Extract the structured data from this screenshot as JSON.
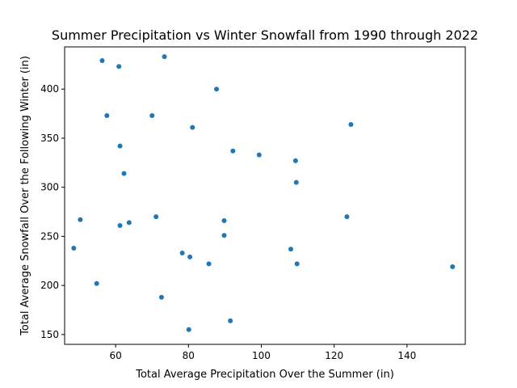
{
  "chart_data": {
    "type": "scatter",
    "title": "Summer Precipitation vs Winter Snowfall from 1990 through 2022",
    "xlabel": "Total Average Precipitation Over the Summer (in)",
    "ylabel": "Total Average Snowfall Over the Following Winter (in)",
    "xlim": [
      46,
      156
    ],
    "ylim": [
      140,
      443
    ],
    "xticks": [
      60,
      80,
      100,
      120,
      140
    ],
    "yticks": [
      150,
      200,
      250,
      300,
      350,
      400
    ],
    "grid": false,
    "point_color": "#1f77b4",
    "points": [
      {
        "x": 48.5,
        "y": 238
      },
      {
        "x": 50.3,
        "y": 267
      },
      {
        "x": 54.8,
        "y": 202
      },
      {
        "x": 56.3,
        "y": 429
      },
      {
        "x": 57.6,
        "y": 373
      },
      {
        "x": 60.9,
        "y": 423
      },
      {
        "x": 61.2,
        "y": 342
      },
      {
        "x": 61.2,
        "y": 261
      },
      {
        "x": 62.3,
        "y": 314
      },
      {
        "x": 63.7,
        "y": 264
      },
      {
        "x": 70.0,
        "y": 373
      },
      {
        "x": 71.1,
        "y": 270
      },
      {
        "x": 72.6,
        "y": 188
      },
      {
        "x": 73.4,
        "y": 433
      },
      {
        "x": 78.3,
        "y": 233
      },
      {
        "x": 80.1,
        "y": 155
      },
      {
        "x": 80.4,
        "y": 229
      },
      {
        "x": 81.1,
        "y": 361
      },
      {
        "x": 85.6,
        "y": 222
      },
      {
        "x": 87.7,
        "y": 400
      },
      {
        "x": 89.8,
        "y": 266
      },
      {
        "x": 89.8,
        "y": 251
      },
      {
        "x": 91.5,
        "y": 164
      },
      {
        "x": 92.2,
        "y": 337
      },
      {
        "x": 99.4,
        "y": 333
      },
      {
        "x": 108.1,
        "y": 237
      },
      {
        "x": 109.4,
        "y": 327
      },
      {
        "x": 109.6,
        "y": 305
      },
      {
        "x": 109.8,
        "y": 222
      },
      {
        "x": 123.5,
        "y": 270
      },
      {
        "x": 124.6,
        "y": 364
      },
      {
        "x": 152.5,
        "y": 219
      }
    ]
  }
}
